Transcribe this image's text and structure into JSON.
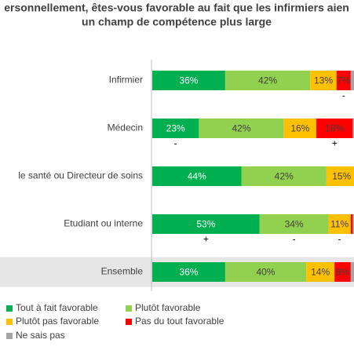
{
  "chart_data": {
    "type": "stacked-bar-horizontal",
    "title": [
      "ersonnellement, êtes-vous favorable au fait que les infirmiers aien",
      "un champ de compétence plus large"
    ],
    "categories": [
      "Infirmier",
      "Médecin",
      "le santé ou Directeur de soins",
      "Etudiant ou interne",
      "Ensemble"
    ],
    "highlight_category": 4,
    "xlim": [
      0,
      100
    ],
    "series": [
      {
        "name": "Tout à fait favorable",
        "color": "#00b050",
        "values": [
          36,
          23,
          44,
          53,
          36
        ],
        "value_labels": [
          "36%",
          "23%",
          "44%",
          "53%",
          "36%"
        ]
      },
      {
        "name": "Plutôt favorable",
        "color": "#92d050",
        "values": [
          42,
          42,
          42,
          34,
          40
        ],
        "value_labels": [
          "42%",
          "42%",
          "42%",
          "34%",
          "40%"
        ]
      },
      {
        "name": "Plutôt pas favorable",
        "color": "#ffc000",
        "values": [
          13,
          16,
          15,
          11,
          14
        ],
        "value_labels": [
          "13%",
          "16%",
          "15%",
          "11%",
          "14%"
        ]
      },
      {
        "name": "Pas du tout favorable",
        "color": "#ff0000",
        "values": [
          7,
          18,
          null,
          1,
          8
        ],
        "value_labels": [
          "7%",
          "18%",
          null,
          null,
          "8%"
        ]
      },
      {
        "name": "Ne sais pas",
        "color": "#a6a6a6",
        "values": [
          2,
          1,
          null,
          1,
          2
        ],
        "value_labels": [
          null,
          null,
          null,
          null,
          null
        ]
      }
    ],
    "annotations": [
      {
        "text": "-",
        "category": 0,
        "series": 3
      },
      {
        "text": "-",
        "category": 1,
        "series": 0
      },
      {
        "text": "+",
        "category": 1,
        "series": 3
      },
      {
        "text": "+",
        "category": 3,
        "series": 0
      },
      {
        "text": "-",
        "category": 3,
        "series": 1
      },
      {
        "text": "-",
        "category": 3,
        "series": 2
      }
    ]
  }
}
